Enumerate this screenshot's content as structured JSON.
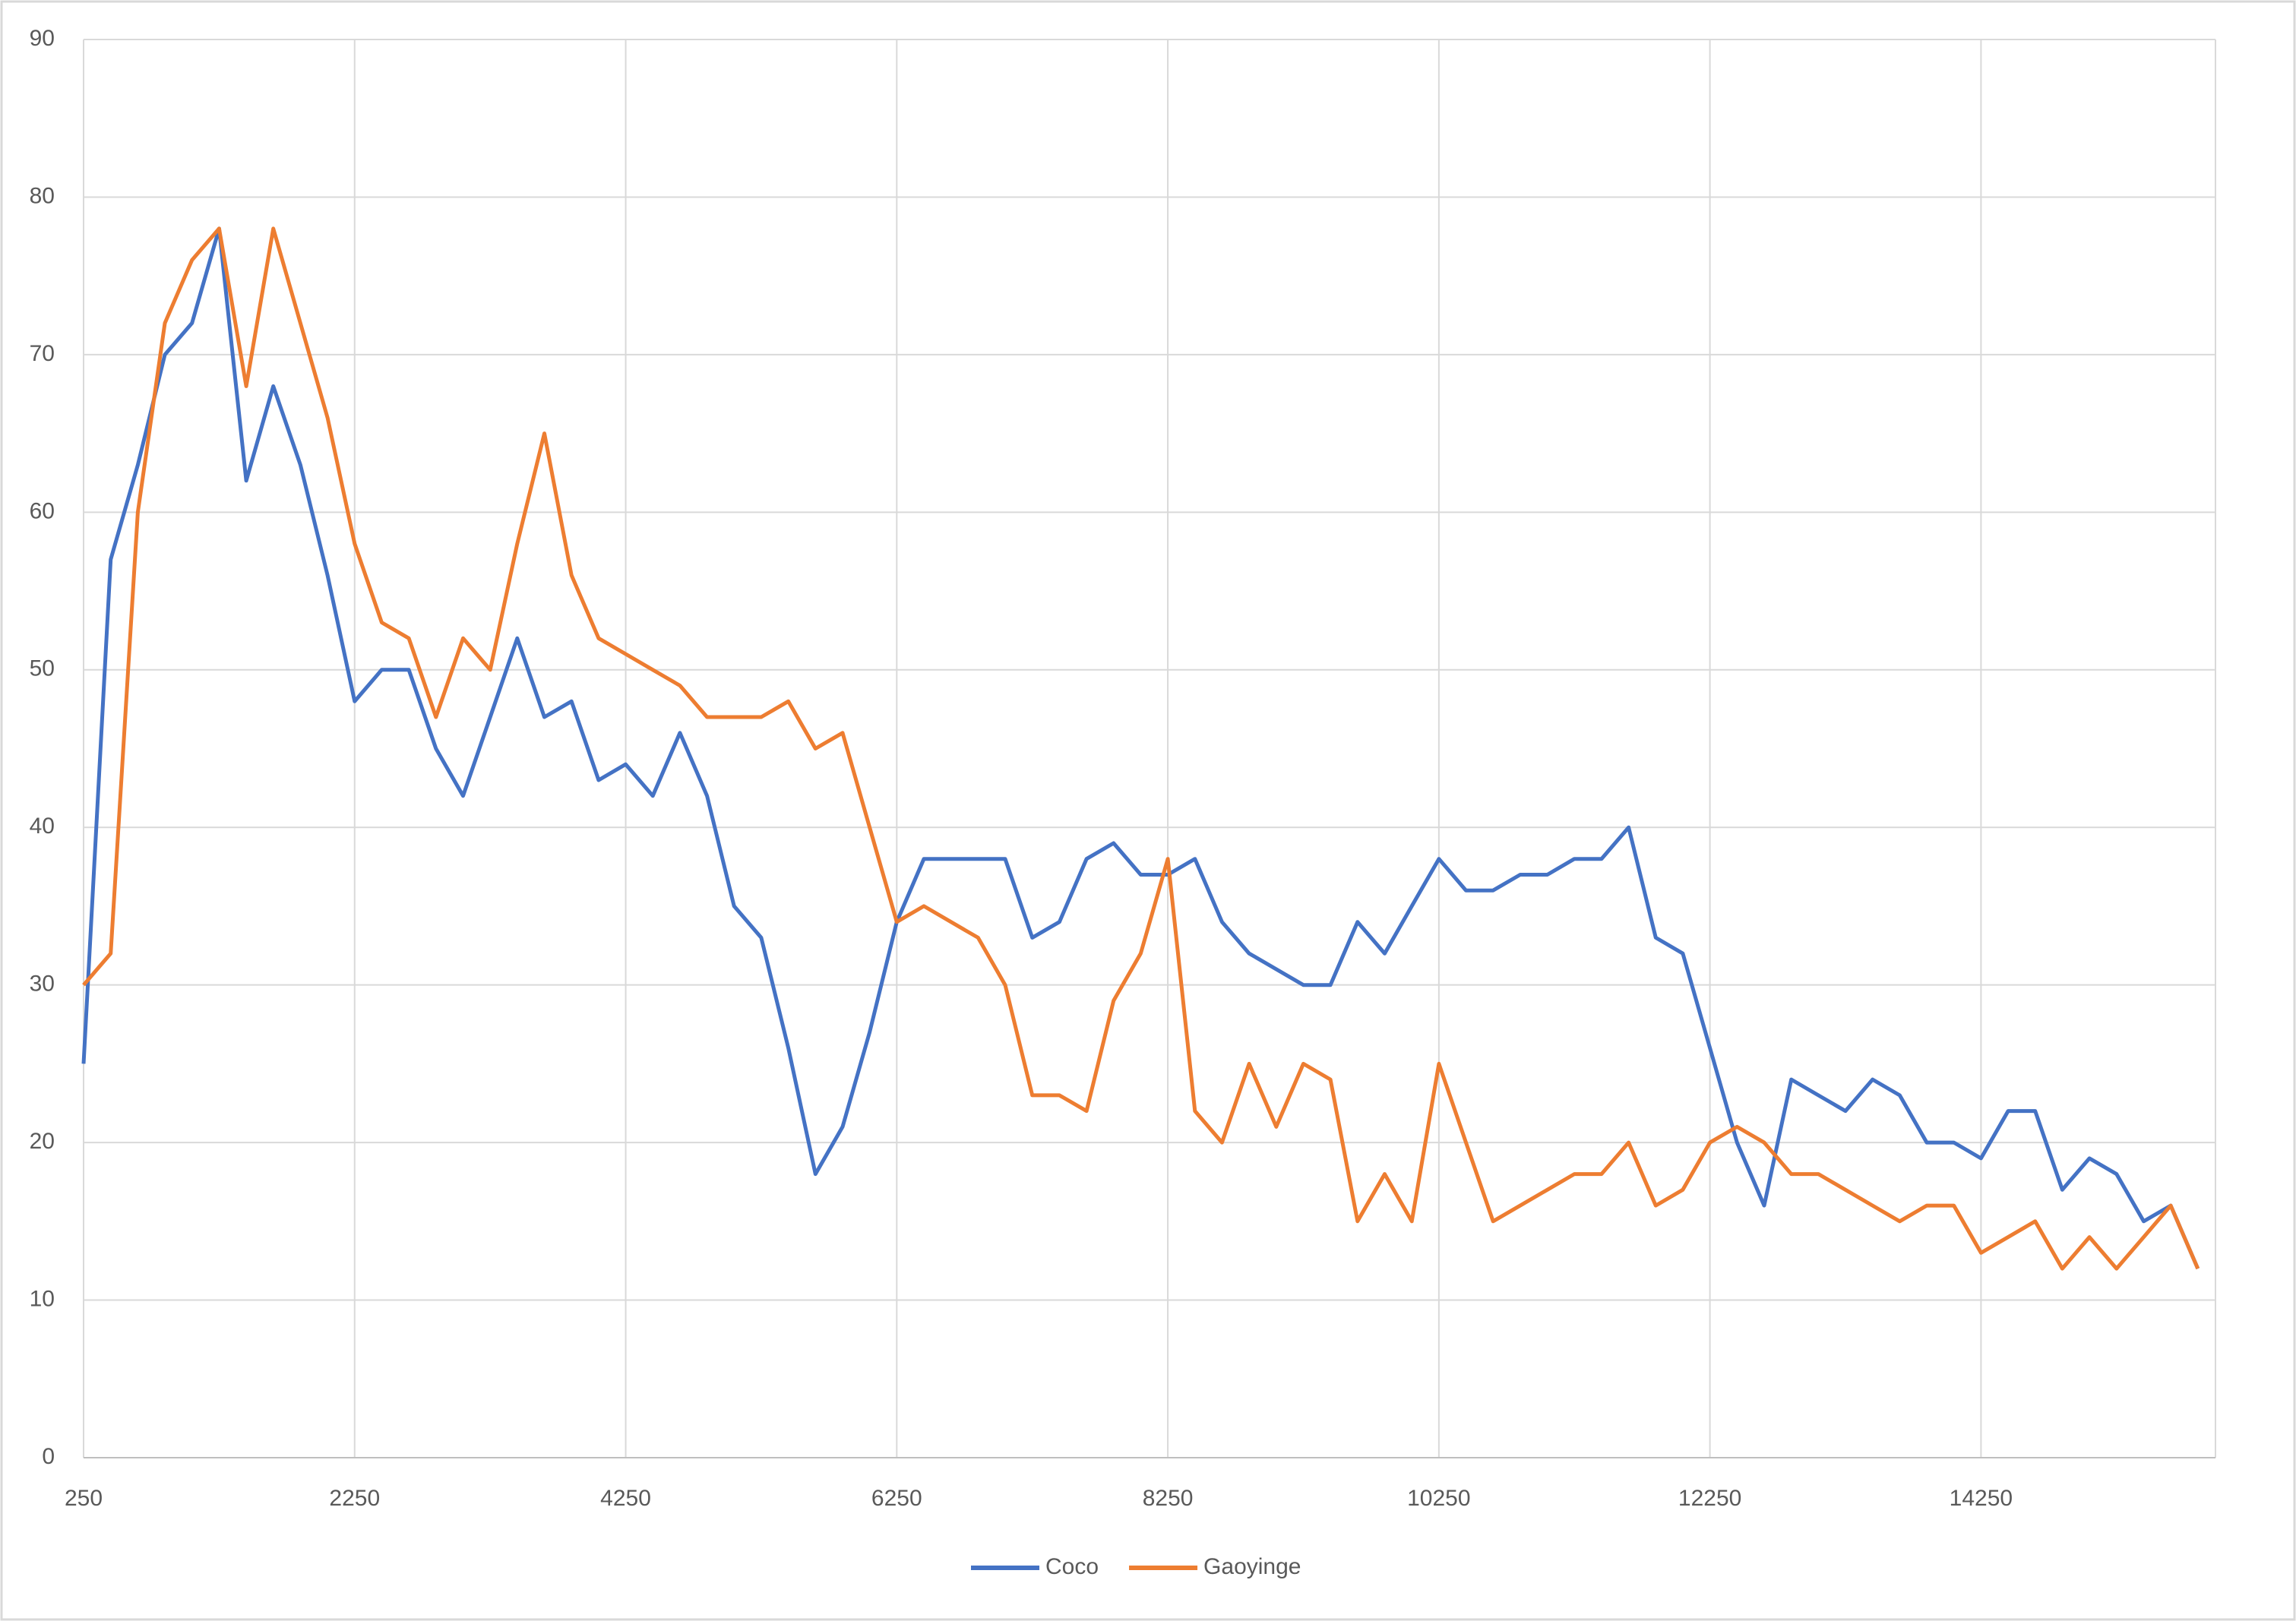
{
  "chart_data": {
    "type": "line",
    "x": [
      250,
      450,
      650,
      850,
      1050,
      1250,
      1450,
      1650,
      1850,
      2050,
      2250,
      2450,
      2650,
      2850,
      3050,
      3250,
      3450,
      3650,
      3850,
      4050,
      4250,
      4450,
      4650,
      4850,
      5050,
      5250,
      5450,
      5650,
      5850,
      6050,
      6250,
      6450,
      6650,
      6850,
      7050,
      7250,
      7450,
      7650,
      7850,
      8050,
      8250,
      8450,
      8650,
      8850,
      9050,
      9250,
      9450,
      9650,
      9850,
      10050,
      10250,
      10450,
      10650,
      10850,
      11050,
      11250,
      11450,
      11650,
      11850,
      12050,
      12250,
      12450,
      12650,
      12850,
      13050,
      13250,
      13450,
      13650,
      13850,
      14050,
      14250,
      14450,
      14650,
      14850,
      15050,
      15250,
      15450,
      15650,
      15850
    ],
    "series": [
      {
        "name": "Coco",
        "color": "#4472c4",
        "values": [
          25,
          57,
          63,
          70,
          72,
          78,
          62,
          68,
          63,
          56,
          48,
          50,
          50,
          45,
          42,
          47,
          52,
          47,
          48,
          43,
          44,
          42,
          46,
          42,
          35,
          33,
          26,
          18,
          21,
          27,
          34,
          38,
          38,
          38,
          38,
          33,
          34,
          38,
          39,
          37,
          37,
          38,
          34,
          32,
          31,
          30,
          30,
          34,
          32,
          35,
          38,
          36,
          36,
          37,
          37,
          38,
          38,
          40,
          33,
          32,
          26,
          20,
          16,
          24,
          23,
          22,
          24,
          23,
          20,
          20,
          19,
          22,
          22,
          17,
          19,
          18,
          15,
          16,
          12
        ]
      },
      {
        "name": "Gaoyinge",
        "color": "#ed7d31",
        "values": [
          30,
          32,
          60,
          72,
          76,
          78,
          68,
          78,
          72,
          66,
          58,
          53,
          52,
          47,
          52,
          50,
          58,
          65,
          56,
          52,
          51,
          50,
          49,
          47,
          47,
          47,
          48,
          45,
          46,
          40,
          34,
          35,
          34,
          33,
          30,
          23,
          23,
          22,
          29,
          32,
          38,
          22,
          20,
          25,
          21,
          25,
          24,
          15,
          18,
          15,
          25,
          20,
          15,
          16,
          17,
          18,
          18,
          20,
          16,
          17,
          20,
          21,
          20,
          18,
          18,
          17,
          16,
          15,
          16,
          16,
          13,
          14,
          15,
          12,
          14,
          12,
          14,
          16,
          12
        ]
      }
    ],
    "xlim": [
      250,
      15980
    ],
    "xticks": [
      250,
      2250,
      4250,
      6250,
      8250,
      10250,
      12250,
      14250
    ],
    "ylim": [
      0,
      90
    ],
    "yticks": [
      0,
      10,
      20,
      30,
      40,
      50,
      60,
      70,
      80,
      90
    ],
    "grid": true,
    "legend": "bottom"
  }
}
